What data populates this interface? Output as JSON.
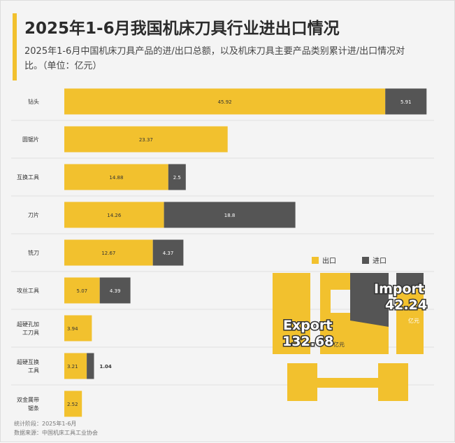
{
  "title": "2025年1-6月我国机床刀具行业进出口情况",
  "subtitle": "2025年1-6月中国机床刀具产品的进/出口总额，以及机床刀具主要产品类别累计进/出口情况对比。（单位：亿元）",
  "chart_data": {
    "type": "bar",
    "orientation": "horizontal",
    "stacked": true,
    "unit": "亿元",
    "categories": [
      "钻头",
      "圆锯片",
      "互换工具",
      "刀片",
      "铣刀",
      "攻丝工具",
      "超硬孔加\n工刀具",
      "超硬互换\n工具",
      "双金属带\n锯条"
    ],
    "series": [
      {
        "name": "出口",
        "color": "#f2c12e",
        "values": [
          45.92,
          23.37,
          14.88,
          14.26,
          12.67,
          5.07,
          3.94,
          3.21,
          2.52
        ]
      },
      {
        "name": "进口",
        "color": "#555555",
        "values": [
          5.91,
          null,
          2.5,
          18.8,
          4.37,
          4.39,
          null,
          1.04,
          null
        ]
      }
    ],
    "xlim": [
      0,
      52
    ],
    "legend_position": "right"
  },
  "totals": {
    "export_label": "Export",
    "export_value": "132.68",
    "import_label": "Import",
    "import_value": "42.24",
    "unit": "亿元"
  },
  "footer": {
    "period": "统计阶段：2025年1-6月",
    "source": "数据来源：中国机床工具工业协会"
  }
}
